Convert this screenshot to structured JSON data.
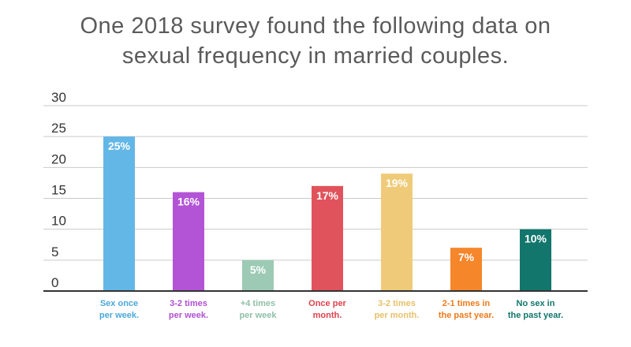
{
  "title_line1": "One 2018 survey found the following data on",
  "title_line2": "sexual frequency in married couples.",
  "chart_data": {
    "type": "bar",
    "title": "One 2018 survey found the following data on sexual frequency in married couples.",
    "xlabel": "",
    "ylabel": "",
    "ylim": [
      0,
      30
    ],
    "yticks": [
      0,
      5,
      10,
      15,
      20,
      25,
      30
    ],
    "grid": true,
    "categories": [
      [
        "Sex once",
        "per week."
      ],
      [
        "3-2 times",
        "per week."
      ],
      [
        "+4 times",
        "per week"
      ],
      [
        "Once per",
        "month."
      ],
      [
        "3-2 times",
        "per month."
      ],
      [
        "2-1 times in",
        "the past year."
      ],
      [
        "No sex in",
        "the past year."
      ]
    ],
    "values": [
      25,
      16,
      5,
      17,
      19,
      7,
      10
    ],
    "data_labels": [
      "25%",
      "16%",
      "5%",
      "17%",
      "19%",
      "7%",
      "10%"
    ],
    "colors": [
      "#63b7e6",
      "#b354d6",
      "#9ccab5",
      "#e0535c",
      "#efcb79",
      "#f5862a",
      "#13766d"
    ],
    "label_colors": [
      "#4aa8dd",
      "#b14fd4",
      "#8fbfa8",
      "#e0414b",
      "#e8c069",
      "#f07a1a",
      "#11756c"
    ]
  }
}
